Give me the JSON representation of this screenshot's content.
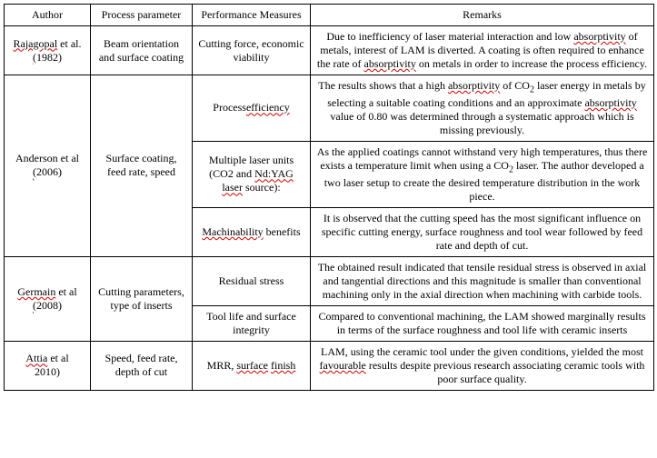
{
  "headers": {
    "author": "Author",
    "process": "Process parameter",
    "perf": "Performance Measures",
    "remarks": "Remarks"
  },
  "rows": {
    "rajagopal": {
      "author_a": "Rajagopal",
      "author_b": " et al. ",
      "author_c": "(",
      "author_d": "1982)",
      "process": "Beam orientation and surface coating",
      "perf": "Cutting force, economic viability",
      "remarks_a": "Due to inefficiency of laser material interaction and low ",
      "remarks_b": "absorptivity",
      "remarks_c": " of metals, interest of LAM is diverted. A coating is often required to enhance the rate of ",
      "remarks_d": "absorptivity",
      "remarks_e": " on metals in order to increase the process efficiency."
    },
    "anderson": {
      "author_a": "Anderson  et al",
      "author_b": "(",
      "author_c": "2006)",
      "process": "Surface coating, feed rate, speed",
      "perf1_a": "Process",
      "perf1_b": "efficiency",
      "remarks1_a": "The results shows that a high ",
      "remarks1_b": "absorptivity",
      "remarks1_c": " of CO",
      "remarks1_sub1": "2",
      "remarks1_d": " laser energy in metals by selecting a suitable coating conditions and an approximate ",
      "remarks1_e": "absorptivity",
      "remarks1_f": " value of 0.80 was determined through a systematic approach which is missing previously.",
      "perf2_a": "Multiple laser units (CO2 and ",
      "perf2_b": "Nd:YAG",
      "perf2_c": "laser",
      "perf2_d": " source):",
      "remarks2_a": "As the applied coatings cannot withstand very high temperatures, thus there exists a temperature limit when using a CO",
      "remarks2_sub": "2",
      "remarks2_b": " laser. The author developed a two laser setup to create the desired temperature distribution in the work piece.",
      "perf3_a": "Machinability",
      "perf3_b": " benefits",
      "remarks3": "It is observed that the cutting speed has the most significant influence on specific cutting energy, surface roughness and tool wear followed by feed rate and depth of cut."
    },
    "germain": {
      "author_a": "Germain",
      "author_b": " et al ",
      "author_c": "(",
      "author_d": "2008)",
      "process": "Cutting parameters, type of inserts",
      "perf1": "Residual stress",
      "remarks1": "The obtained result indicated that tensile residual stress is observed in axial and tangential directions and this magnitude is smaller than conventional machining only in the axial direction when machining with carbide tools.",
      "perf2": "Tool life and surface integrity",
      "remarks2": "Compared to conventional machining, the LAM showed marginally results in terms of the surface roughness and tool life with ceramic inserts"
    },
    "attia": {
      "author_a": "Attia",
      "author_b": " et al ",
      "author_c": "2010)",
      "process": "Speed, feed rate, depth of cut",
      "perf_a": "MRR, ",
      "perf_b": "surface",
      "perf_c": "finish",
      "remarks_a": "LAM, using the ceramic tool under the given conditions, yielded the most ",
      "remarks_b": "favourable",
      "remarks_c": " results despite previous research associating ceramic tools with poor surface quality."
    }
  }
}
